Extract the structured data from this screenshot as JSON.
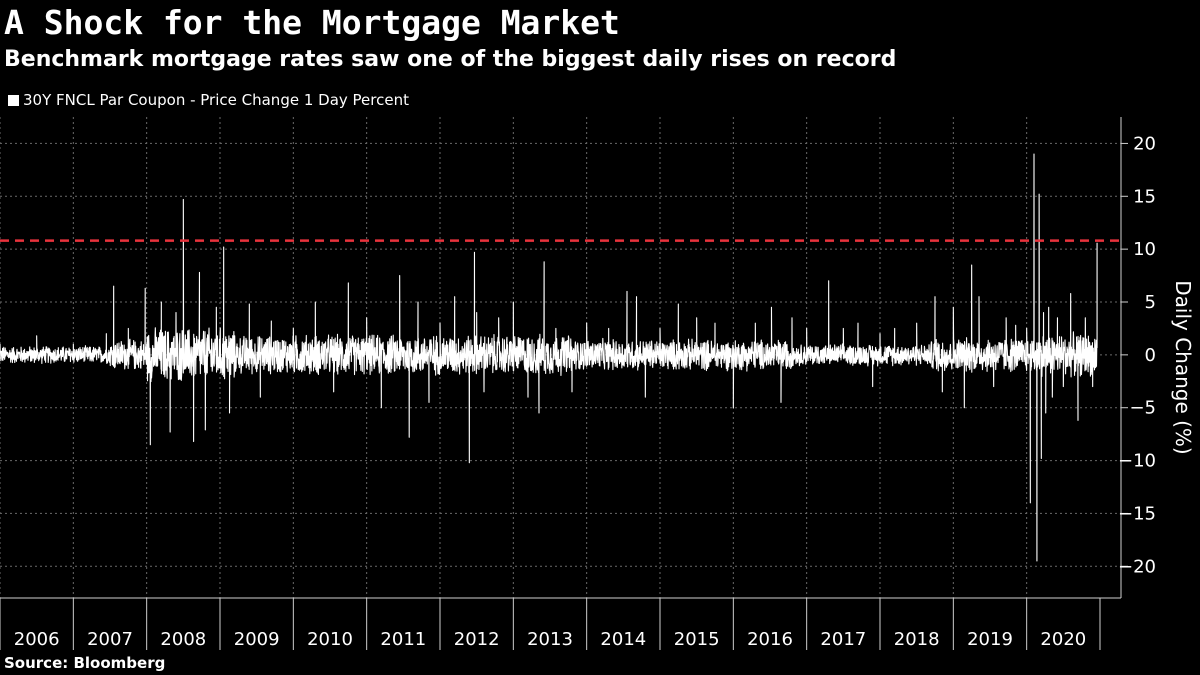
{
  "title": "A Shock for the Mortgage Market",
  "subtitle": "Benchmark mortgage rates saw one of the biggest daily rises on record",
  "source": "Source: Bloomberg",
  "colors": {
    "background": "#000000",
    "series": "#ffffff",
    "reference_line": "#e8323c",
    "grid": "#6a6a6a"
  },
  "chart_data": {
    "type": "line",
    "title": "",
    "xlabel": "",
    "ylabel": "Daily Change (%)",
    "y_axis_side": "right",
    "ylim": [
      -23,
      22.5
    ],
    "yticks": [
      20,
      15,
      10,
      5,
      0,
      -5,
      -10,
      -15,
      -20
    ],
    "xlim": [
      2006.0,
      2021.0
    ],
    "xticks": [
      "2006",
      "2007",
      "2008",
      "2009",
      "2010",
      "2011",
      "2012",
      "2013",
      "2014",
      "2015",
      "2016",
      "2017",
      "2018",
      "2019",
      "2020"
    ],
    "grid": true,
    "legend": {
      "position": "top-left",
      "entries": [
        "30Y FNCL Par Coupon - Price Change 1 Day Percent"
      ]
    },
    "reference_line": {
      "y": 10.8,
      "style": "dashed",
      "color": "#e8323c"
    },
    "series": [
      {
        "name": "30Y FNCL Par Coupon - Price Change 1 Day Percent",
        "x": [
          2006.0,
          2006.5,
          2007.0,
          2007.45,
          2007.55,
          2007.75,
          2007.98,
          2008.05,
          2008.2,
          2008.32,
          2008.4,
          2008.5,
          2008.64,
          2008.72,
          2008.8,
          2008.95,
          2009.05,
          2009.13,
          2009.4,
          2009.55,
          2009.7,
          2010.0,
          2010.3,
          2010.55,
          2010.75,
          2011.0,
          2011.2,
          2011.45,
          2011.58,
          2011.7,
          2011.85,
          2012.0,
          2012.2,
          2012.4,
          2012.47,
          2012.5,
          2012.6,
          2012.8,
          2013.0,
          2013.2,
          2013.35,
          2013.42,
          2013.58,
          2013.8,
          2014.0,
          2014.3,
          2014.55,
          2014.68,
          2014.8,
          2015.0,
          2015.25,
          2015.5,
          2015.75,
          2016.0,
          2016.3,
          2016.52,
          2016.65,
          2016.8,
          2017.0,
          2017.3,
          2017.5,
          2017.7,
          2017.9,
          2018.0,
          2018.2,
          2018.5,
          2018.75,
          2018.85,
          2019.0,
          2019.15,
          2019.25,
          2019.35,
          2019.55,
          2019.72,
          2019.85,
          2020.0,
          2020.05,
          2020.1,
          2020.14,
          2020.17,
          2020.2,
          2020.23,
          2020.26,
          2020.3,
          2020.35,
          2020.42,
          2020.5,
          2020.6,
          2020.7,
          2020.8,
          2020.9,
          2020.96
        ],
        "values": [
          1.0,
          1.8,
          1.0,
          2.0,
          6.5,
          2.5,
          6.3,
          -8.5,
          5.0,
          -7.3,
          4.0,
          14.7,
          -8.2,
          7.8,
          -7.1,
          4.5,
          10.2,
          -5.5,
          4.8,
          -4.0,
          3.2,
          2.5,
          5.0,
          -3.5,
          6.8,
          3.5,
          -5.0,
          7.5,
          -7.8,
          5.0,
          -4.5,
          3.0,
          5.5,
          -10.2,
          9.7,
          4.0,
          -3.5,
          3.5,
          5.0,
          -4.0,
          -5.5,
          8.8,
          2.5,
          -3.5,
          3.0,
          2.5,
          6.0,
          5.5,
          -4.0,
          2.5,
          4.8,
          3.5,
          3.0,
          -5.0,
          3.0,
          4.5,
          -4.5,
          3.5,
          2.5,
          7.0,
          2.5,
          3.0,
          -3.0,
          2.0,
          2.5,
          3.0,
          5.5,
          -3.5,
          4.5,
          -5.0,
          8.5,
          5.5,
          -3.0,
          3.5,
          2.8,
          2.5,
          -14.0,
          19.0,
          -19.5,
          15.2,
          -9.8,
          4.0,
          -5.5,
          4.5,
          -4.0,
          3.5,
          -3.0,
          5.8,
          -6.2,
          3.5,
          -3.0,
          10.6
        ]
      }
    ]
  }
}
